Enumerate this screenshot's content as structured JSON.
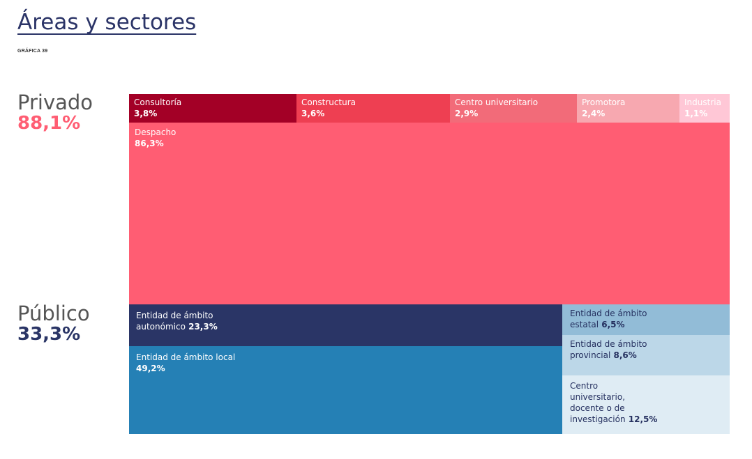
{
  "page": {
    "title": "Áreas y sectores",
    "subtitle": "GRÁFICA 39"
  },
  "groups": [
    {
      "name": "Privado",
      "percent_label": "88,1%",
      "color": "#ff5d73"
    },
    {
      "name": "Público",
      "percent_label": "33,3%",
      "color": "#2a3566"
    }
  ],
  "chart_data": {
    "type": "treemap",
    "groups": [
      {
        "name": "Privado",
        "total": 88.1,
        "items": [
          {
            "label": "Consultoría",
            "value_label": "3,8%",
            "value": 3.8,
            "color": "#a30026",
            "text_color": "#ffffff"
          },
          {
            "label": "Constructura",
            "value_label": "3,6%",
            "value": 3.6,
            "color": "#ee3f52",
            "text_color": "#ffffff"
          },
          {
            "label": "Centro universitario",
            "value_label": "2,9%",
            "value": 2.9,
            "color": "#f26b79",
            "text_color": "#ffffff"
          },
          {
            "label": "Promotora",
            "value_label": "2,4%",
            "value": 2.4,
            "color": "#f7a8b0",
            "text_color": "#ffffff"
          },
          {
            "label": "Industria",
            "value_label": "1,1%",
            "value": 1.1,
            "color": "#ffc7d6",
            "text_color": "#ffffff"
          },
          {
            "label": "Despacho",
            "value_label": "86,3%",
            "value": 86.3,
            "color": "#ff5d73",
            "text_color": "#ffffff"
          }
        ]
      },
      {
        "name": "Público",
        "total": 33.3,
        "items": [
          {
            "label": "Entidad de ámbito autonómico",
            "value_label": "23,3%",
            "value": 23.3,
            "color": "#2a3566",
            "text_color": "#ffffff"
          },
          {
            "label": "Entidad de ámbito local",
            "value_label": "49,2%",
            "value": 49.2,
            "color": "#2580b5",
            "text_color": "#ffffff"
          },
          {
            "label": "Entidad de ámbito estatal",
            "value_label": "6,5%",
            "value": 6.5,
            "color": "#92bcd7",
            "text_color": "#25305f"
          },
          {
            "label": "Entidad de ámbito provincial",
            "value_label": "8,6%",
            "value": 8.6,
            "color": "#bcd7e8",
            "text_color": "#25305f"
          },
          {
            "label": "Centro universitario, docente o de investigación",
            "value_label": "12,5%",
            "value": 12.5,
            "color": "#dfecf4",
            "text_color": "#25305f"
          }
        ]
      }
    ]
  }
}
